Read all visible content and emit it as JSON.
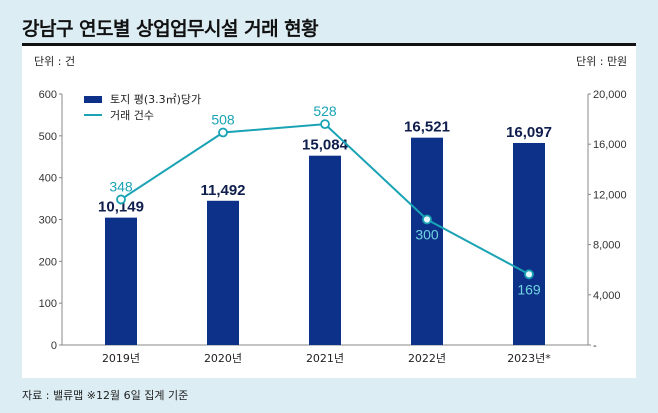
{
  "title": "강남구 연도별 상업업무시설 거래 현황",
  "unit_left": "단위 : 건",
  "unit_right": "단위 : 만원",
  "source": "자료 : 밸류맵 ※12월 6일 집계 기준",
  "colors": {
    "background": "#dcedf4",
    "bar": "#0d3189",
    "line": "#1aa3b5",
    "bar_label": "#0f1e4d"
  },
  "chart_data": {
    "type": "bar",
    "title": "강남구 연도별 상업업무시설 거래 현황",
    "categories": [
      "2019년",
      "2020년",
      "2021년",
      "2022년",
      "2023년*"
    ],
    "series": [
      {
        "name": "토지 평(3.3㎡)당가",
        "type": "bar",
        "axis": "right",
        "values": [
          10149,
          11492,
          15084,
          16521,
          16097
        ],
        "labels": [
          "10,149",
          "11,492",
          "15,084",
          "16,521",
          "16,097"
        ]
      },
      {
        "name": "거래 건수",
        "type": "line",
        "axis": "left",
        "values": [
          348,
          508,
          528,
          300,
          169
        ],
        "labels": [
          "348",
          "508",
          "528",
          "300",
          "169"
        ]
      }
    ],
    "left_axis": {
      "label": "단위 : 건",
      "range": [
        0,
        600
      ],
      "ticks": [
        0,
        100,
        200,
        300,
        400,
        500,
        600
      ],
      "tick_labels": [
        "0",
        "100",
        "200",
        "300",
        "400",
        "500",
        "600"
      ]
    },
    "right_axis": {
      "label": "단위 : 만원",
      "range": [
        0,
        20000
      ],
      "ticks": [
        0,
        4000,
        8000,
        12000,
        16000,
        20000
      ],
      "tick_labels": [
        "-",
        "4,000",
        "8,000",
        "12,000",
        "16,000",
        "20,000"
      ]
    },
    "legend": {
      "placement": "top-left",
      "entries": [
        "토지 평(3.3㎡)당가",
        "거래 건수"
      ]
    },
    "grid": false
  }
}
